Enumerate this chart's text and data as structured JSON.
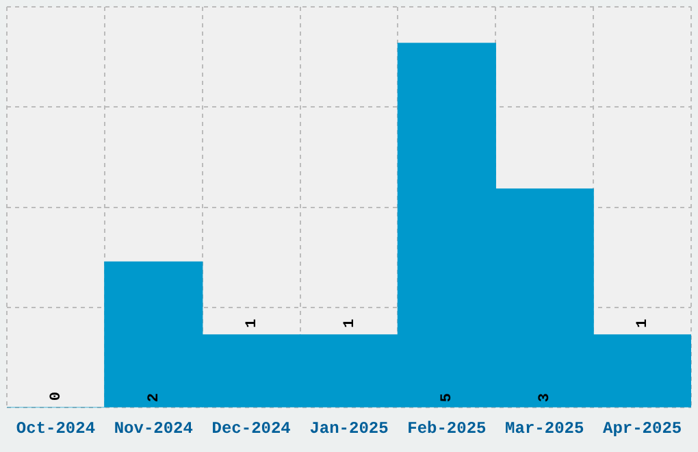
{
  "chart_data": {
    "type": "bar",
    "categories": [
      "Oct-2024",
      "Nov-2024",
      "Dec-2024",
      "Jan-2025",
      "Feb-2025",
      "Mar-2025",
      "Apr-2025"
    ],
    "values": [
      0,
      2,
      1,
      1,
      5,
      3,
      1
    ],
    "color": "#0099cc",
    "ylim": [
      0,
      5.5
    ],
    "yticks": [
      {
        "value": 0,
        "label": null
      },
      {
        "value": 1.375,
        "label": null
      },
      {
        "value": 2.75,
        "label": null
      },
      {
        "value": 4.125,
        "label": null
      },
      {
        "value": 5.5,
        "label": null
      }
    ],
    "tick_labels": "x",
    "grid": true,
    "legend": false,
    "data_labels": true
  }
}
